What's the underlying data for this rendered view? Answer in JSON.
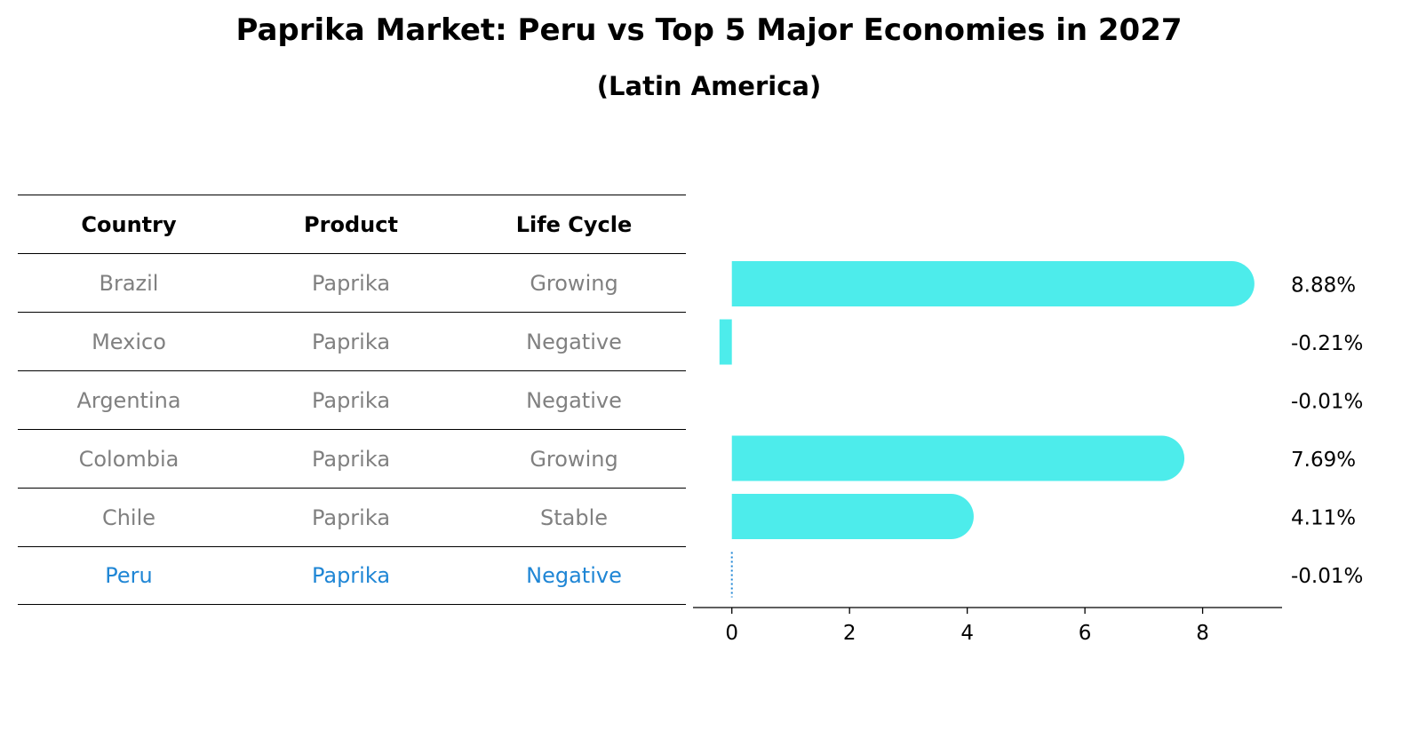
{
  "title": "Paprika Market: Peru vs Top 5 Major Economies in 2027",
  "subtitle": "(Latin America)",
  "table": {
    "headers": [
      "Country",
      "Product",
      "Life Cycle"
    ],
    "rows": [
      [
        "Brazil",
        "Paprika",
        "Growing"
      ],
      [
        "Mexico",
        "Paprika",
        "Negative"
      ],
      [
        "Argentina",
        "Paprika",
        "Negative"
      ],
      [
        "Colombia",
        "Paprika",
        "Growing"
      ],
      [
        "Chile",
        "Paprika",
        "Stable"
      ],
      [
        "Peru",
        "Paprika",
        "Negative"
      ]
    ],
    "highlight_row": "Peru",
    "highlight_color": "#1f86d5",
    "text_color": "#808080"
  },
  "chart_data": {
    "type": "bar",
    "orientation": "horizontal",
    "categories": [
      "Brazil",
      "Mexico",
      "Argentina",
      "Colombia",
      "Chile",
      "Peru"
    ],
    "values": [
      8.88,
      -0.21,
      -0.01,
      7.69,
      4.11,
      -0.01
    ],
    "labels": [
      "8.88%",
      "-0.21%",
      "-0.01%",
      "7.69%",
      "4.11%",
      "-0.01%"
    ],
    "xticks": [
      "0",
      "2",
      "4",
      "6",
      "8"
    ],
    "xlim": [
      -0.66,
      9.35
    ],
    "bar_color": "#4deceb",
    "highlight_line_color": "#1f86d5",
    "grid": false
  }
}
